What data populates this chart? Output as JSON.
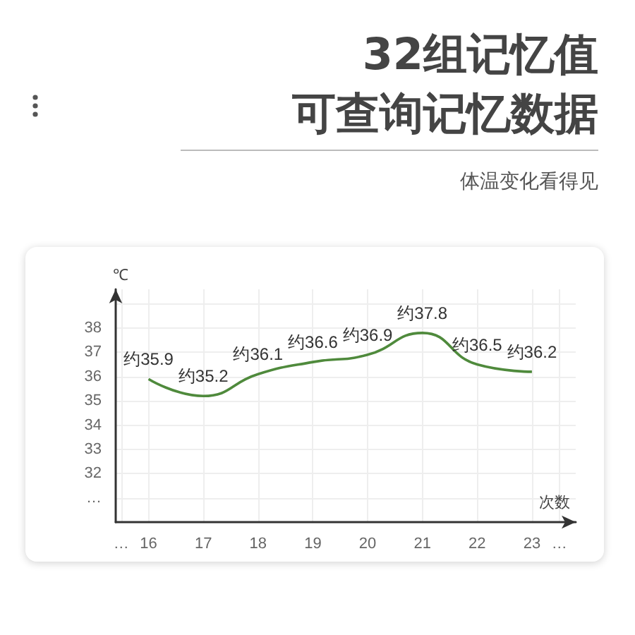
{
  "chart_data": {
    "type": "line",
    "title": "32组记忆值",
    "subtitle": "可查询记忆数据",
    "annotations": [
      "体温变化看得见"
    ],
    "xlabel": "次数",
    "ylabel": "℃",
    "x": [
      16,
      17,
      18,
      19,
      20,
      21,
      22,
      23
    ],
    "series": [
      {
        "color": "#4f8a3c",
        "values": [
          35.9,
          35.2,
          36.1,
          36.6,
          36.9,
          37.8,
          36.5,
          36.2
        ],
        "value_labels": [
          "约35.9",
          "约35.2",
          "约36.1",
          "约36.6",
          "约36.9",
          "约37.8",
          "约36.5",
          "约36.2"
        ]
      }
    ],
    "xlim": [
      15.4,
      23.8
    ],
    "xticks": [
      {
        "value": 15.5,
        "label": "…"
      },
      16,
      17,
      18,
      19,
      20,
      21,
      22,
      23,
      {
        "value": 23.5,
        "label": "…"
      }
    ],
    "ylim": [
      30,
      39.6
    ],
    "yticks": [
      {
        "value": 31,
        "label": "…"
      },
      32,
      33,
      34,
      35,
      36,
      37,
      38,
      {
        "value": 39,
        "label": null
      }
    ],
    "grid": true,
    "marker": "none",
    "line_style": "solid"
  }
}
